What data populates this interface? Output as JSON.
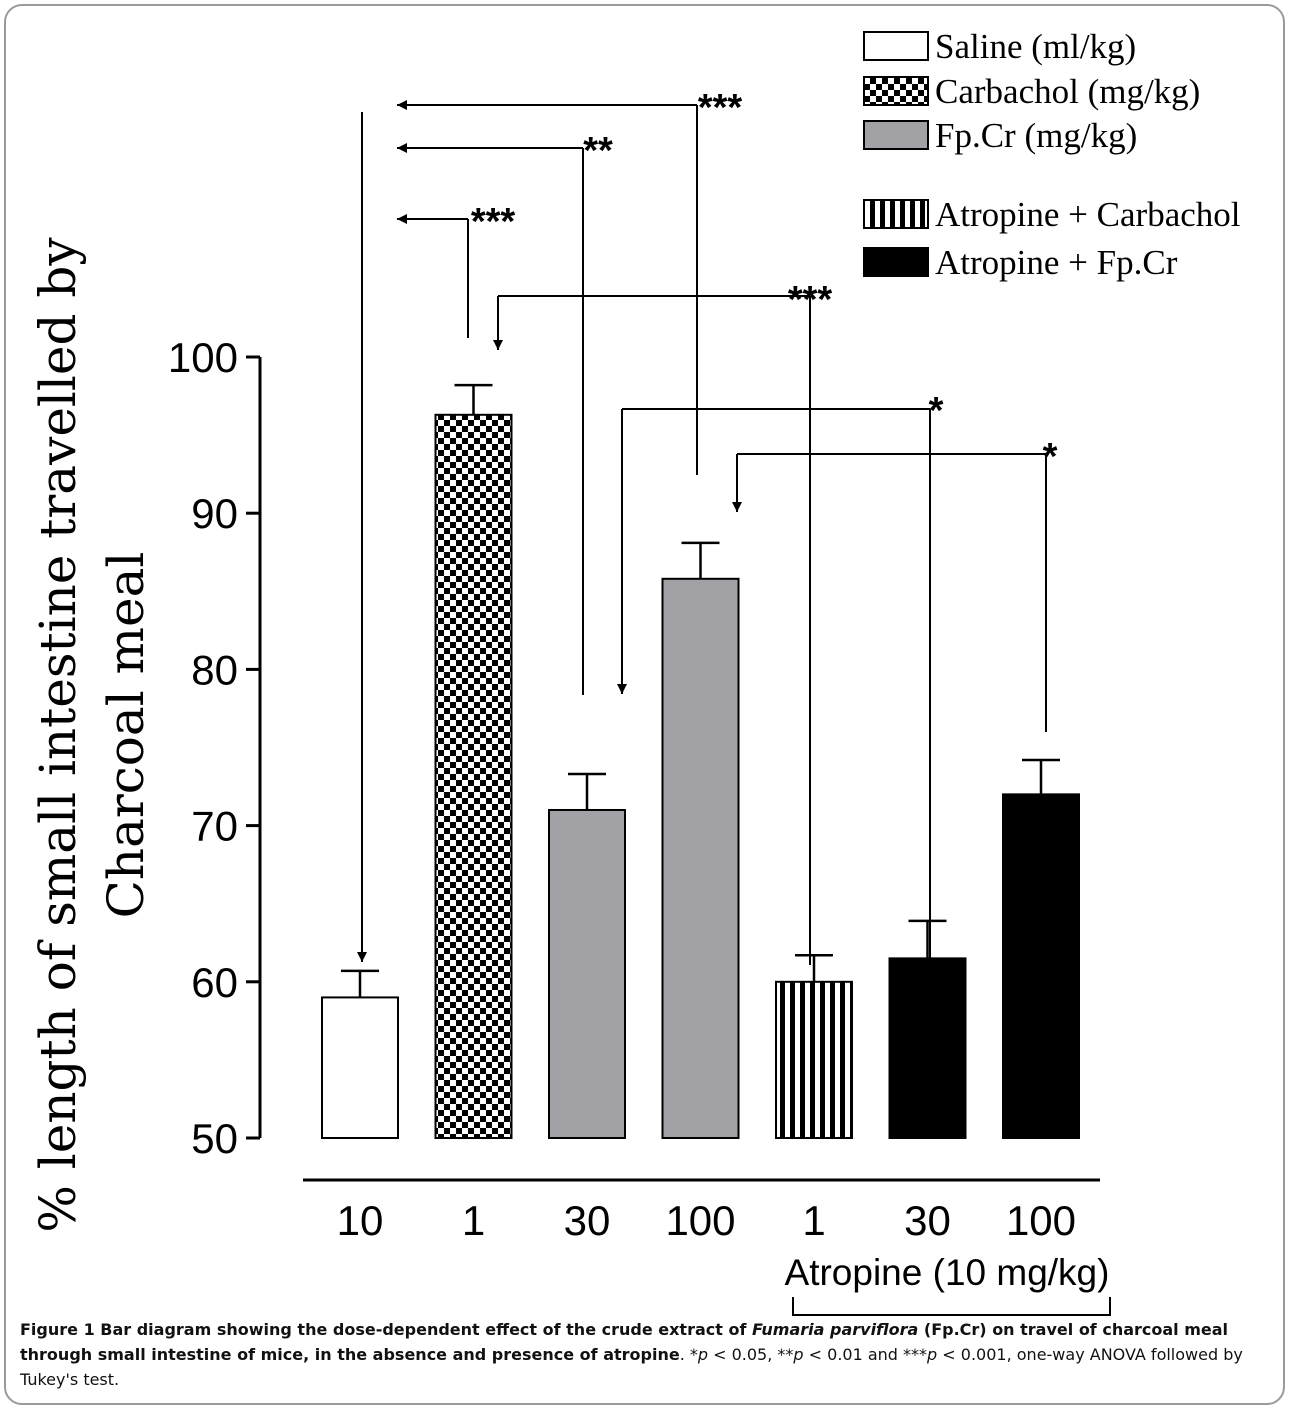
{
  "colors": {
    "gray_bar": "#a2a2a6",
    "ink": "#000000",
    "frame": "#9a9a9a"
  },
  "chart_data": {
    "type": "bar",
    "ylabel": "% length of small intestine travelled by Charcoal meal",
    "ylabel_lines": [
      "% length of small intestine travelled by",
      "Charcoal meal"
    ],
    "ylim": [
      50,
      100
    ],
    "yticks": [
      50,
      60,
      70,
      80,
      90,
      100
    ],
    "grid": false,
    "legend_position": "top-right",
    "categories": [
      "10",
      "1",
      "30",
      "100",
      "1",
      "30",
      "100"
    ],
    "values": [
      59,
      96.3,
      71,
      85.8,
      60,
      61.5,
      72
    ],
    "errors": [
      1.7,
      1.9,
      2.3,
      2.3,
      1.7,
      2.4,
      2.2
    ],
    "fills": [
      "white",
      "checker",
      "gray",
      "gray",
      "vstripe",
      "black",
      "black"
    ],
    "series": [
      {
        "name": "Saline (ml/kg)",
        "fill": "white"
      },
      {
        "name": "Carbachol (mg/kg)",
        "fill": "checker"
      },
      {
        "name": "Fp.Cr (mg/kg)",
        "fill": "gray"
      },
      {
        "name": "Atropine + Carbachol",
        "fill": "vstripe"
      },
      {
        "name": "Atropine + Fp.Cr",
        "fill": "black"
      }
    ],
    "group_label": "Atropine (10 mg/kg)",
    "significance": [
      {
        "from_bar": 0,
        "to_bar": 1,
        "label": "***"
      },
      {
        "from_bar": 0,
        "to_bar": 2,
        "label": "**"
      },
      {
        "from_bar": 0,
        "to_bar": 3,
        "label": "***"
      },
      {
        "from_bar": 1,
        "to_bar": 4,
        "label": "***"
      },
      {
        "from_bar": 2,
        "to_bar": 5,
        "label": "*"
      },
      {
        "from_bar": 3,
        "to_bar": 6,
        "label": "*"
      }
    ]
  },
  "caption": {
    "figure_label": "Figure 1",
    "title_pre": " Bar diagram showing the dose-dependent effect of the crude extract of ",
    "species": "Fumaria parviflora",
    "title_post": " (Fp.Cr) on travel of charcoal meal through small intestine of mice, in the absence and presence of atropine",
    "stats_1": ". *",
    "p1": "p",
    "stats_2": " < 0.05, **",
    "p2": "p",
    "stats_3": " < 0.01 and ***",
    "p3": "p",
    "stats_4": " < 0.001, one-way ANOVA followed by Tukey's test."
  }
}
